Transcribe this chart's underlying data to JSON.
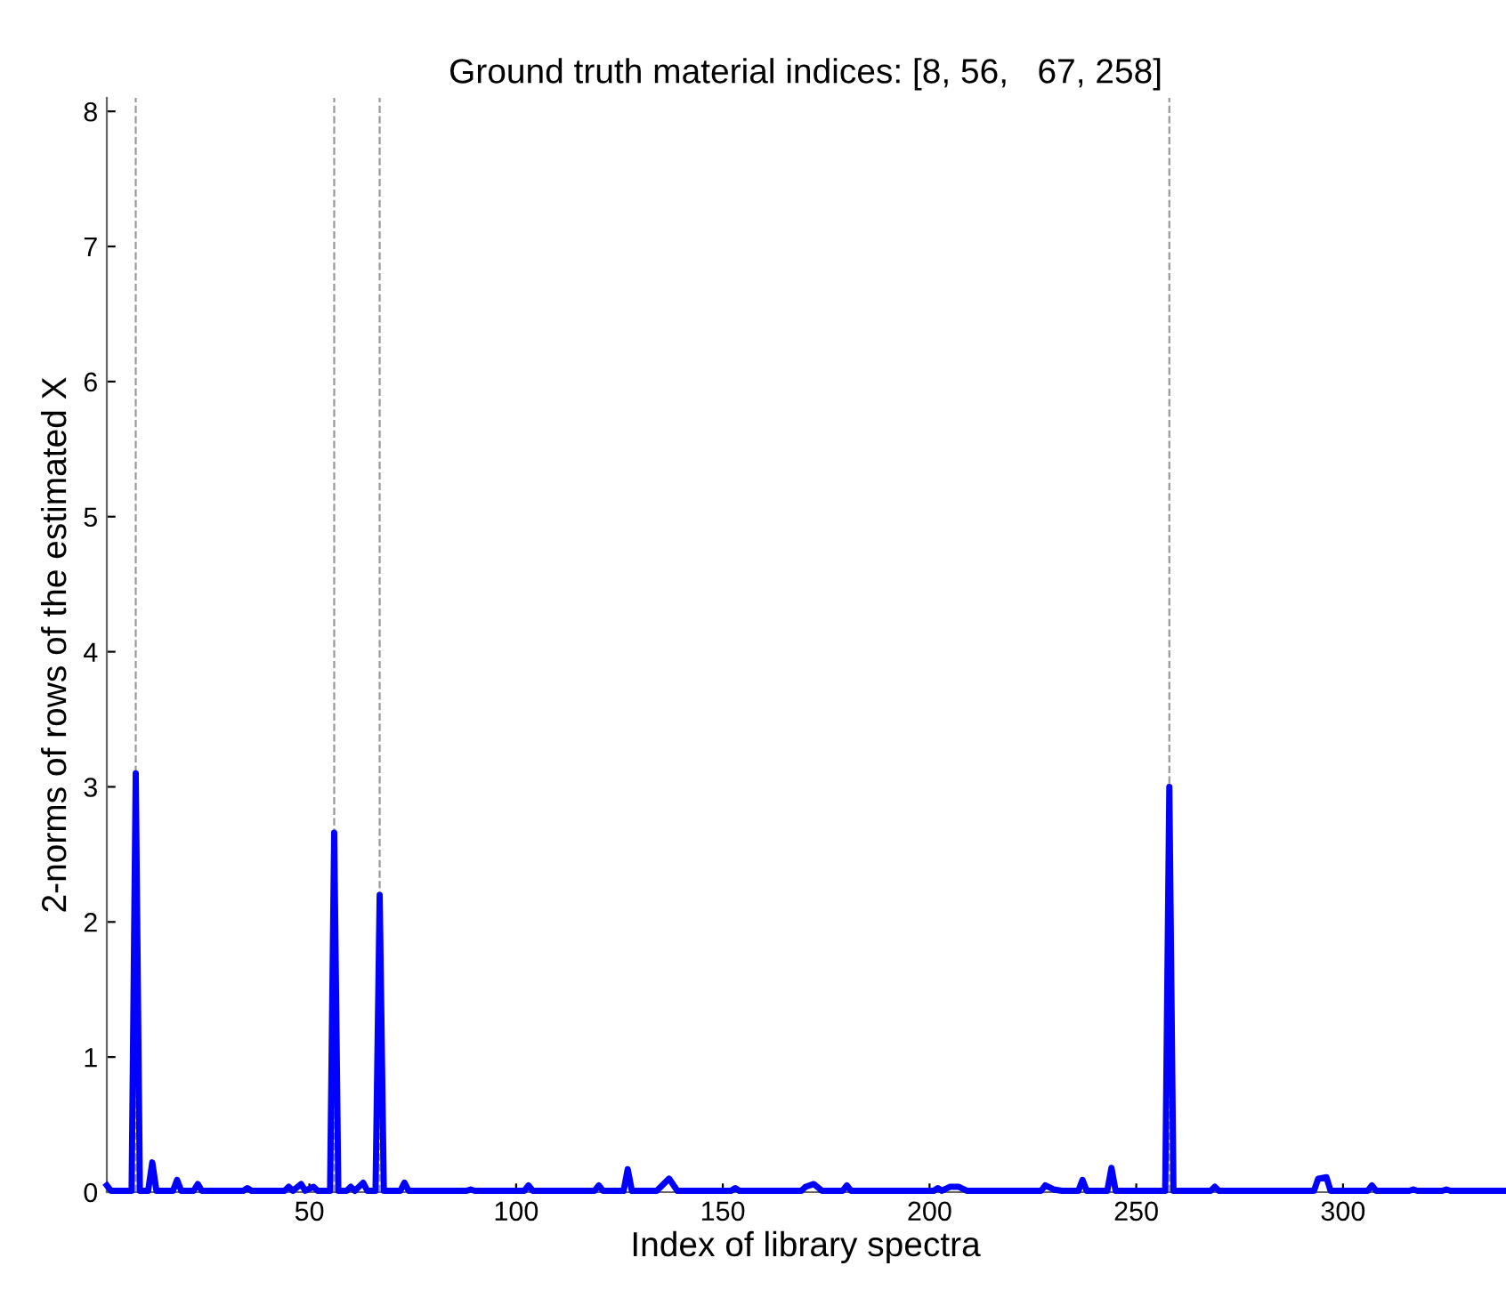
{
  "chart_data": {
    "type": "line",
    "title": "Ground truth material indices: [8, 56,   67, 258]",
    "xlabel": "Index of library spectra",
    "ylabel": "2-norms of rows of the estimated X",
    "series": [
      {
        "color": "#0000ff",
        "x": [
          1,
          2,
          7,
          8,
          9,
          11,
          12,
          13,
          17,
          18,
          19,
          22,
          23,
          24,
          34,
          35,
          36,
          44,
          45,
          46,
          48,
          49,
          51,
          52,
          55,
          56,
          57,
          59,
          60,
          61,
          63,
          64,
          66,
          67,
          68,
          72,
          73,
          74,
          88,
          89,
          90,
          102,
          103,
          104,
          119,
          120,
          121,
          126,
          127,
          128,
          134,
          135,
          137,
          139,
          152,
          153,
          154,
          169,
          170,
          172,
          174,
          179,
          180,
          181,
          201,
          202,
          203,
          205,
          207,
          209,
          227,
          228,
          230,
          232,
          236,
          237,
          238,
          243,
          244,
          245,
          257,
          258,
          259,
          268,
          269,
          270,
          293,
          294,
          296,
          297,
          306,
          307,
          308,
          316,
          317,
          318,
          324,
          325,
          326,
          339
        ],
        "values": [
          0.05,
          0.01,
          0.01,
          3.1,
          0.01,
          0.01,
          0.22,
          0.01,
          0.01,
          0.09,
          0.01,
          0.01,
          0.06,
          0.01,
          0.01,
          0.03,
          0.01,
          0.01,
          0.04,
          0.01,
          0.06,
          0.01,
          0.04,
          0.01,
          0.01,
          2.66,
          0.01,
          0.01,
          0.04,
          0.01,
          0.07,
          0.01,
          0.01,
          2.2,
          0.01,
          0.01,
          0.07,
          0.01,
          0.01,
          0.02,
          0.01,
          0.01,
          0.05,
          0.01,
          0.01,
          0.05,
          0.01,
          0.01,
          0.17,
          0.01,
          0.01,
          0.04,
          0.1,
          0.01,
          0.01,
          0.03,
          0.01,
          0.01,
          0.04,
          0.06,
          0.01,
          0.01,
          0.05,
          0.01,
          0.01,
          0.03,
          0.01,
          0.04,
          0.04,
          0.01,
          0.01,
          0.05,
          0.02,
          0.01,
          0.01,
          0.09,
          0.01,
          0.01,
          0.18,
          0.01,
          0.01,
          3.0,
          0.01,
          0.01,
          0.04,
          0.01,
          0.01,
          0.1,
          0.11,
          0.01,
          0.01,
          0.05,
          0.01,
          0.01,
          0.02,
          0.01,
          0.01,
          0.02,
          0.01,
          0.01
        ]
      }
    ],
    "ref_lines": [
      {
        "axis": "x",
        "value": 8,
        "color": "#999999",
        "line_style": "dashed"
      },
      {
        "axis": "x",
        "value": 56,
        "color": "#999999",
        "line_style": "dashed"
      },
      {
        "axis": "x",
        "value": 67,
        "color": "#999999",
        "line_style": "dashed"
      },
      {
        "axis": "x",
        "value": 258,
        "color": "#999999",
        "line_style": "dashed"
      }
    ],
    "xlim": [
      1,
      339
    ],
    "ylim": [
      0,
      8.1
    ],
    "xticks": [
      50,
      100,
      150,
      200,
      250,
      300
    ],
    "yticks": [
      0,
      1,
      2,
      3,
      4,
      5,
      6,
      7,
      8
    ],
    "grid": false,
    "line_style": "solid",
    "marker": "none"
  }
}
